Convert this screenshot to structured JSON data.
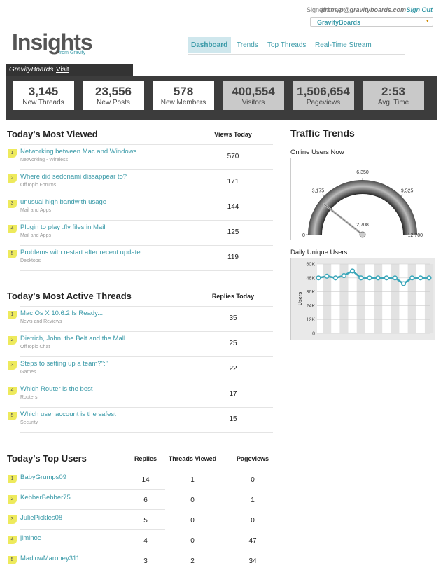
{
  "header": {
    "signed_in_label": "Signed in as:",
    "user": "jimmyp@gravityboards.com",
    "sign_out": "Sign Out",
    "board_select": "GravityBoards"
  },
  "logo": {
    "title": "Insights",
    "tagline": "from Gravity"
  },
  "nav": [
    "Dashboard",
    "Trends",
    "Top Threads",
    "Real-Time Stream"
  ],
  "board_tab": {
    "name": "GravityBoards",
    "visit": "Visit"
  },
  "stats": [
    {
      "value": "3,145",
      "label": "New Threads"
    },
    {
      "value": "23,556",
      "label": "New Posts"
    },
    {
      "value": 578,
      "label": "New Members"
    },
    {
      "value": "400,554",
      "label": "Visitors"
    },
    {
      "value": "1,506,654",
      "label": "Pageviews"
    },
    {
      "value": "2:53",
      "label": "Avg. Time"
    }
  ],
  "most_viewed": {
    "title": "Today's Most Viewed",
    "column": "Views Today",
    "rows": [
      {
        "rank": 1,
        "title": "Networking between Mac and Windows.",
        "forum": "Networking - Wireless",
        "count": 570
      },
      {
        "rank": 2,
        "title": "Where did sedonami dissappear to?",
        "forum": "OffTopic Forums",
        "count": 171
      },
      {
        "rank": 3,
        "title": "unusual high bandwith usage",
        "forum": "Mail and Apps",
        "count": 144
      },
      {
        "rank": 4,
        "title": "Plugin to play .flv files in Mail",
        "forum": "Mail and Apps",
        "count": 125
      },
      {
        "rank": 5,
        "title": "Problems with restart after recent update",
        "forum": "Desktops",
        "count": 119
      }
    ]
  },
  "most_active": {
    "title": "Today's Most Active Threads",
    "column": "Replies Today",
    "rows": [
      {
        "rank": 1,
        "title": "Mac Os X 10.6.2 Is Ready...",
        "forum": "News and Reviews",
        "count": 35
      },
      {
        "rank": 2,
        "title": "Dietrich, John, the Belt and the Mall",
        "forum": "OffTopic Chat",
        "count": 25
      },
      {
        "rank": 3,
        "title": "Steps to setting up a team?\":\"",
        "forum": "Games",
        "count": 22
      },
      {
        "rank": 4,
        "title": "Which Router is the best",
        "forum": "Routers",
        "count": 17
      },
      {
        "rank": 5,
        "title": "Which user account is the safest",
        "forum": "Security",
        "count": 15
      }
    ]
  },
  "top_users": {
    "title": "Today's Top Users",
    "columns": [
      "Replies",
      "Threads Viewed",
      "Pageviews"
    ],
    "rows": [
      {
        "rank": 1,
        "name": "BabyGrumps09",
        "cells": [
          14,
          1,
          0
        ]
      },
      {
        "rank": 2,
        "name": "KebberBebber75",
        "cells": [
          6,
          0,
          1
        ]
      },
      {
        "rank": 3,
        "name": "JuliePickles08",
        "cells": [
          5,
          0,
          0
        ]
      },
      {
        "rank": 4,
        "name": "jiminoc",
        "cells": [
          4,
          0,
          47
        ]
      },
      {
        "rank": 5,
        "name": "MadlowMaroney311",
        "cells": [
          3,
          2,
          34
        ]
      }
    ]
  },
  "traffic": {
    "title": "Traffic Trends"
  },
  "chart_data": [
    {
      "type": "gauge",
      "title": "Online Users Now",
      "value": 2708,
      "value_label": "2,708",
      "ylim": [
        0,
        12700
      ],
      "yticks": [
        0,
        {
          "value": 3175,
          "label": "3,175"
        },
        {
          "value": 6350,
          "label": "6,350"
        },
        {
          "value": 9525,
          "label": "9,525"
        },
        {
          "value": 12700,
          "label": "12,700"
        }
      ],
      "color": "#555555"
    },
    {
      "type": "line",
      "title": "Daily Unique Users",
      "y_label": "Users",
      "categories": [
        null,
        null,
        null,
        null,
        null,
        null,
        null,
        null,
        null,
        null,
        null,
        null,
        null,
        null
      ],
      "series": [
        {
          "color": "#3aa6b9",
          "values": [
            48000,
            49500,
            48000,
            50000,
            54000,
            48000,
            48000,
            48000,
            48000,
            48000,
            43000,
            48000,
            48000,
            48000
          ]
        }
      ],
      "ylim": [
        0,
        60000
      ],
      "yticks": [
        0,
        {
          "value": 12000,
          "label": "12K"
        },
        {
          "value": 24000,
          "label": "24K"
        },
        {
          "value": 36000,
          "label": "36K"
        },
        {
          "value": 48000,
          "label": "48K"
        },
        {
          "value": 60000,
          "label": "60K"
        }
      ],
      "grid": true
    }
  ]
}
